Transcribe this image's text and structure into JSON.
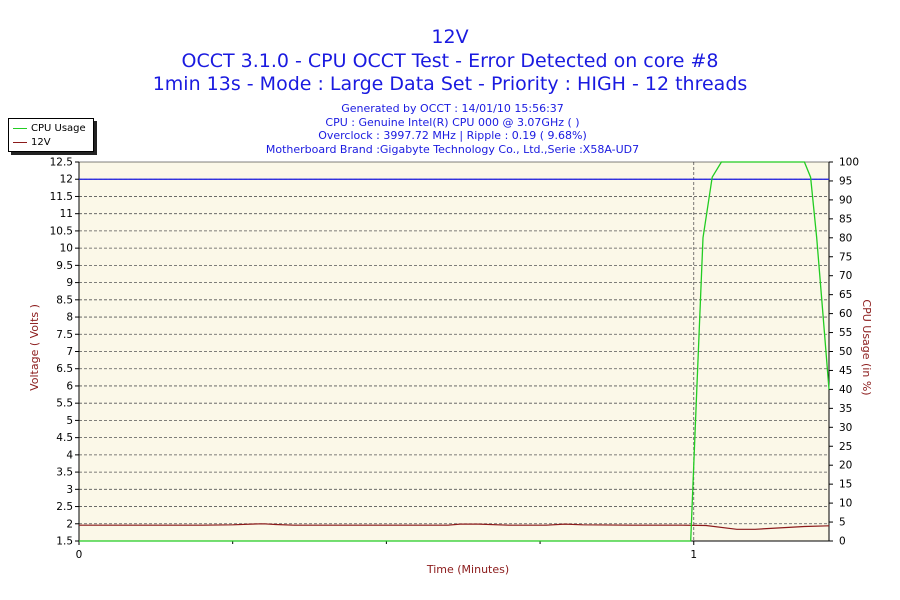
{
  "header": {
    "title": "12V",
    "subtitle1": "OCCT 3.1.0 - CPU OCCT Test - Error Detected on core #8",
    "subtitle2": "1min 13s - Mode : Large Data Set - Priority : HIGH - 12 threads"
  },
  "info": {
    "generated": "Generated by OCCT : 14/01/10 15:56:37",
    "cpu": "CPU : Genuine Intel(R) CPU 000 @ 3.07GHz (    )",
    "overclock": "Overclock : 3997.72 MHz | Ripple : 0.19 ( 9.68%)",
    "motherboard": "Motherboard Brand :Gigabyte Technology Co., Ltd.,Serie :X58A-UD7"
  },
  "legend": {
    "items": [
      {
        "label": "CPU Usage",
        "color": "#22cc22"
      },
      {
        "label": "12V",
        "color": "#8b1a1a"
      }
    ]
  },
  "colors": {
    "plot_bg": "#fbf8e8",
    "grid": "#555555",
    "axis_title": "#8b1a1a",
    "ref_line": "#1a1ae0",
    "cpu_line": "#22cc22",
    "voltage_line": "#8b1a1a",
    "title_text": "#1a1ae0"
  },
  "chart_data": {
    "type": "line",
    "xlabel": "Time (Minutes)",
    "ylabel": "Voltage ( Volts )",
    "y2label": "CPU Usage (in %)",
    "xlim": [
      0,
      1.22
    ],
    "ylim": [
      1.5,
      12.5
    ],
    "y2lim": [
      0,
      100
    ],
    "xticks": [
      "0",
      "1"
    ],
    "yticks": [
      "12.5",
      "12",
      "11.5",
      "11",
      "10.5",
      "10",
      "9.5",
      "9",
      "8.5",
      "8",
      "7.5",
      "7",
      "6.5",
      "6",
      "5.5",
      "5",
      "4.5",
      "4",
      "3.5",
      "3",
      "2.5",
      "2",
      "1.5"
    ],
    "y2ticks": [
      "100",
      "95",
      "90",
      "85",
      "80",
      "75",
      "70",
      "65",
      "60",
      "55",
      "50",
      "45",
      "40",
      "35",
      "30",
      "25",
      "20",
      "15",
      "10",
      "5",
      "0"
    ],
    "grid": true,
    "legend_position": "top-left",
    "reference_line": {
      "y": 12
    },
    "series": [
      {
        "name": "12V",
        "axis": "left",
        "x": [
          0,
          0.1,
          0.2,
          0.25,
          0.28,
          0.3,
          0.32,
          0.35,
          0.45,
          0.6,
          0.62,
          0.65,
          0.7,
          0.76,
          0.79,
          0.82,
          0.9,
          0.98,
          1.02,
          1.07,
          1.1,
          1.14,
          1.18,
          1.22
        ],
        "y": [
          1.96,
          1.96,
          1.96,
          1.97,
          1.99,
          2.0,
          1.98,
          1.96,
          1.96,
          1.96,
          1.99,
          1.99,
          1.96,
          1.96,
          1.99,
          1.97,
          1.96,
          1.96,
          1.95,
          1.84,
          1.84,
          1.88,
          1.92,
          1.94
        ]
      },
      {
        "name": "CPU Usage",
        "axis": "right",
        "x": [
          0,
          0.995,
          1.005,
          1.015,
          1.03,
          1.045,
          1.06,
          1.15,
          1.18,
          1.19,
          1.2,
          1.21,
          1.22
        ],
        "y": [
          0,
          0,
          40,
          80,
          96,
          100,
          100,
          100,
          100,
          96,
          80,
          60,
          40
        ]
      }
    ]
  }
}
